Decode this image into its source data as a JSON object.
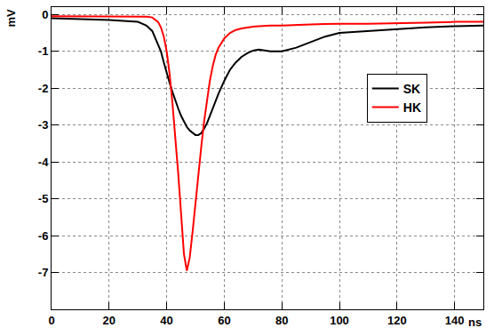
{
  "chart_data": {
    "type": "line",
    "x_label": "ns",
    "y_label": "mV",
    "x": [
      0,
      10,
      20,
      30,
      33,
      35,
      37,
      38,
      39,
      40,
      41,
      42,
      43,
      44,
      45,
      46,
      47,
      48,
      49,
      50,
      51,
      52,
      53,
      54,
      55,
      56,
      57,
      58,
      60,
      62,
      64,
      66,
      68,
      70,
      72,
      76,
      80,
      85,
      90,
      95,
      100,
      110,
      120,
      130,
      140,
      150
    ],
    "series": [
      {
        "name": "SK",
        "color": "#000000",
        "values": [
          -0.1,
          -0.12,
          -0.15,
          -0.2,
          -0.3,
          -0.45,
          -0.8,
          -1.0,
          -1.3,
          -1.6,
          -1.85,
          -2.1,
          -2.35,
          -2.55,
          -2.75,
          -2.9,
          -3.05,
          -3.15,
          -3.22,
          -3.27,
          -3.27,
          -3.22,
          -3.1,
          -2.95,
          -2.75,
          -2.55,
          -2.35,
          -2.15,
          -1.8,
          -1.5,
          -1.3,
          -1.15,
          -1.05,
          -0.98,
          -0.95,
          -1.0,
          -1.0,
          -0.9,
          -0.75,
          -0.6,
          -0.5,
          -0.45,
          -0.4,
          -0.35,
          -0.32,
          -0.3
        ]
      },
      {
        "name": "HK",
        "color": "#ff0000",
        "values": [
          -0.05,
          -0.05,
          -0.05,
          -0.05,
          -0.06,
          -0.08,
          -0.2,
          -0.35,
          -0.6,
          -1.0,
          -1.6,
          -2.4,
          -3.3,
          -4.3,
          -5.4,
          -6.5,
          -6.95,
          -6.6,
          -5.9,
          -5.1,
          -4.3,
          -3.6,
          -2.9,
          -2.3,
          -1.8,
          -1.4,
          -1.1,
          -0.9,
          -0.65,
          -0.5,
          -0.42,
          -0.38,
          -0.35,
          -0.33,
          -0.32,
          -0.3,
          -0.3,
          -0.28,
          -0.27,
          -0.26,
          -0.25,
          -0.25,
          -0.24,
          -0.22,
          -0.2,
          -0.2
        ]
      }
    ],
    "xlim": [
      0,
      150
    ],
    "xticks": [
      0,
      20,
      40,
      60,
      80,
      100,
      120,
      140
    ],
    "ylim": [
      -8,
      0.2
    ],
    "yticks": [
      0,
      -1,
      -2,
      -3,
      -4,
      -5,
      -6,
      -7
    ],
    "grid": true,
    "legend": "right"
  }
}
